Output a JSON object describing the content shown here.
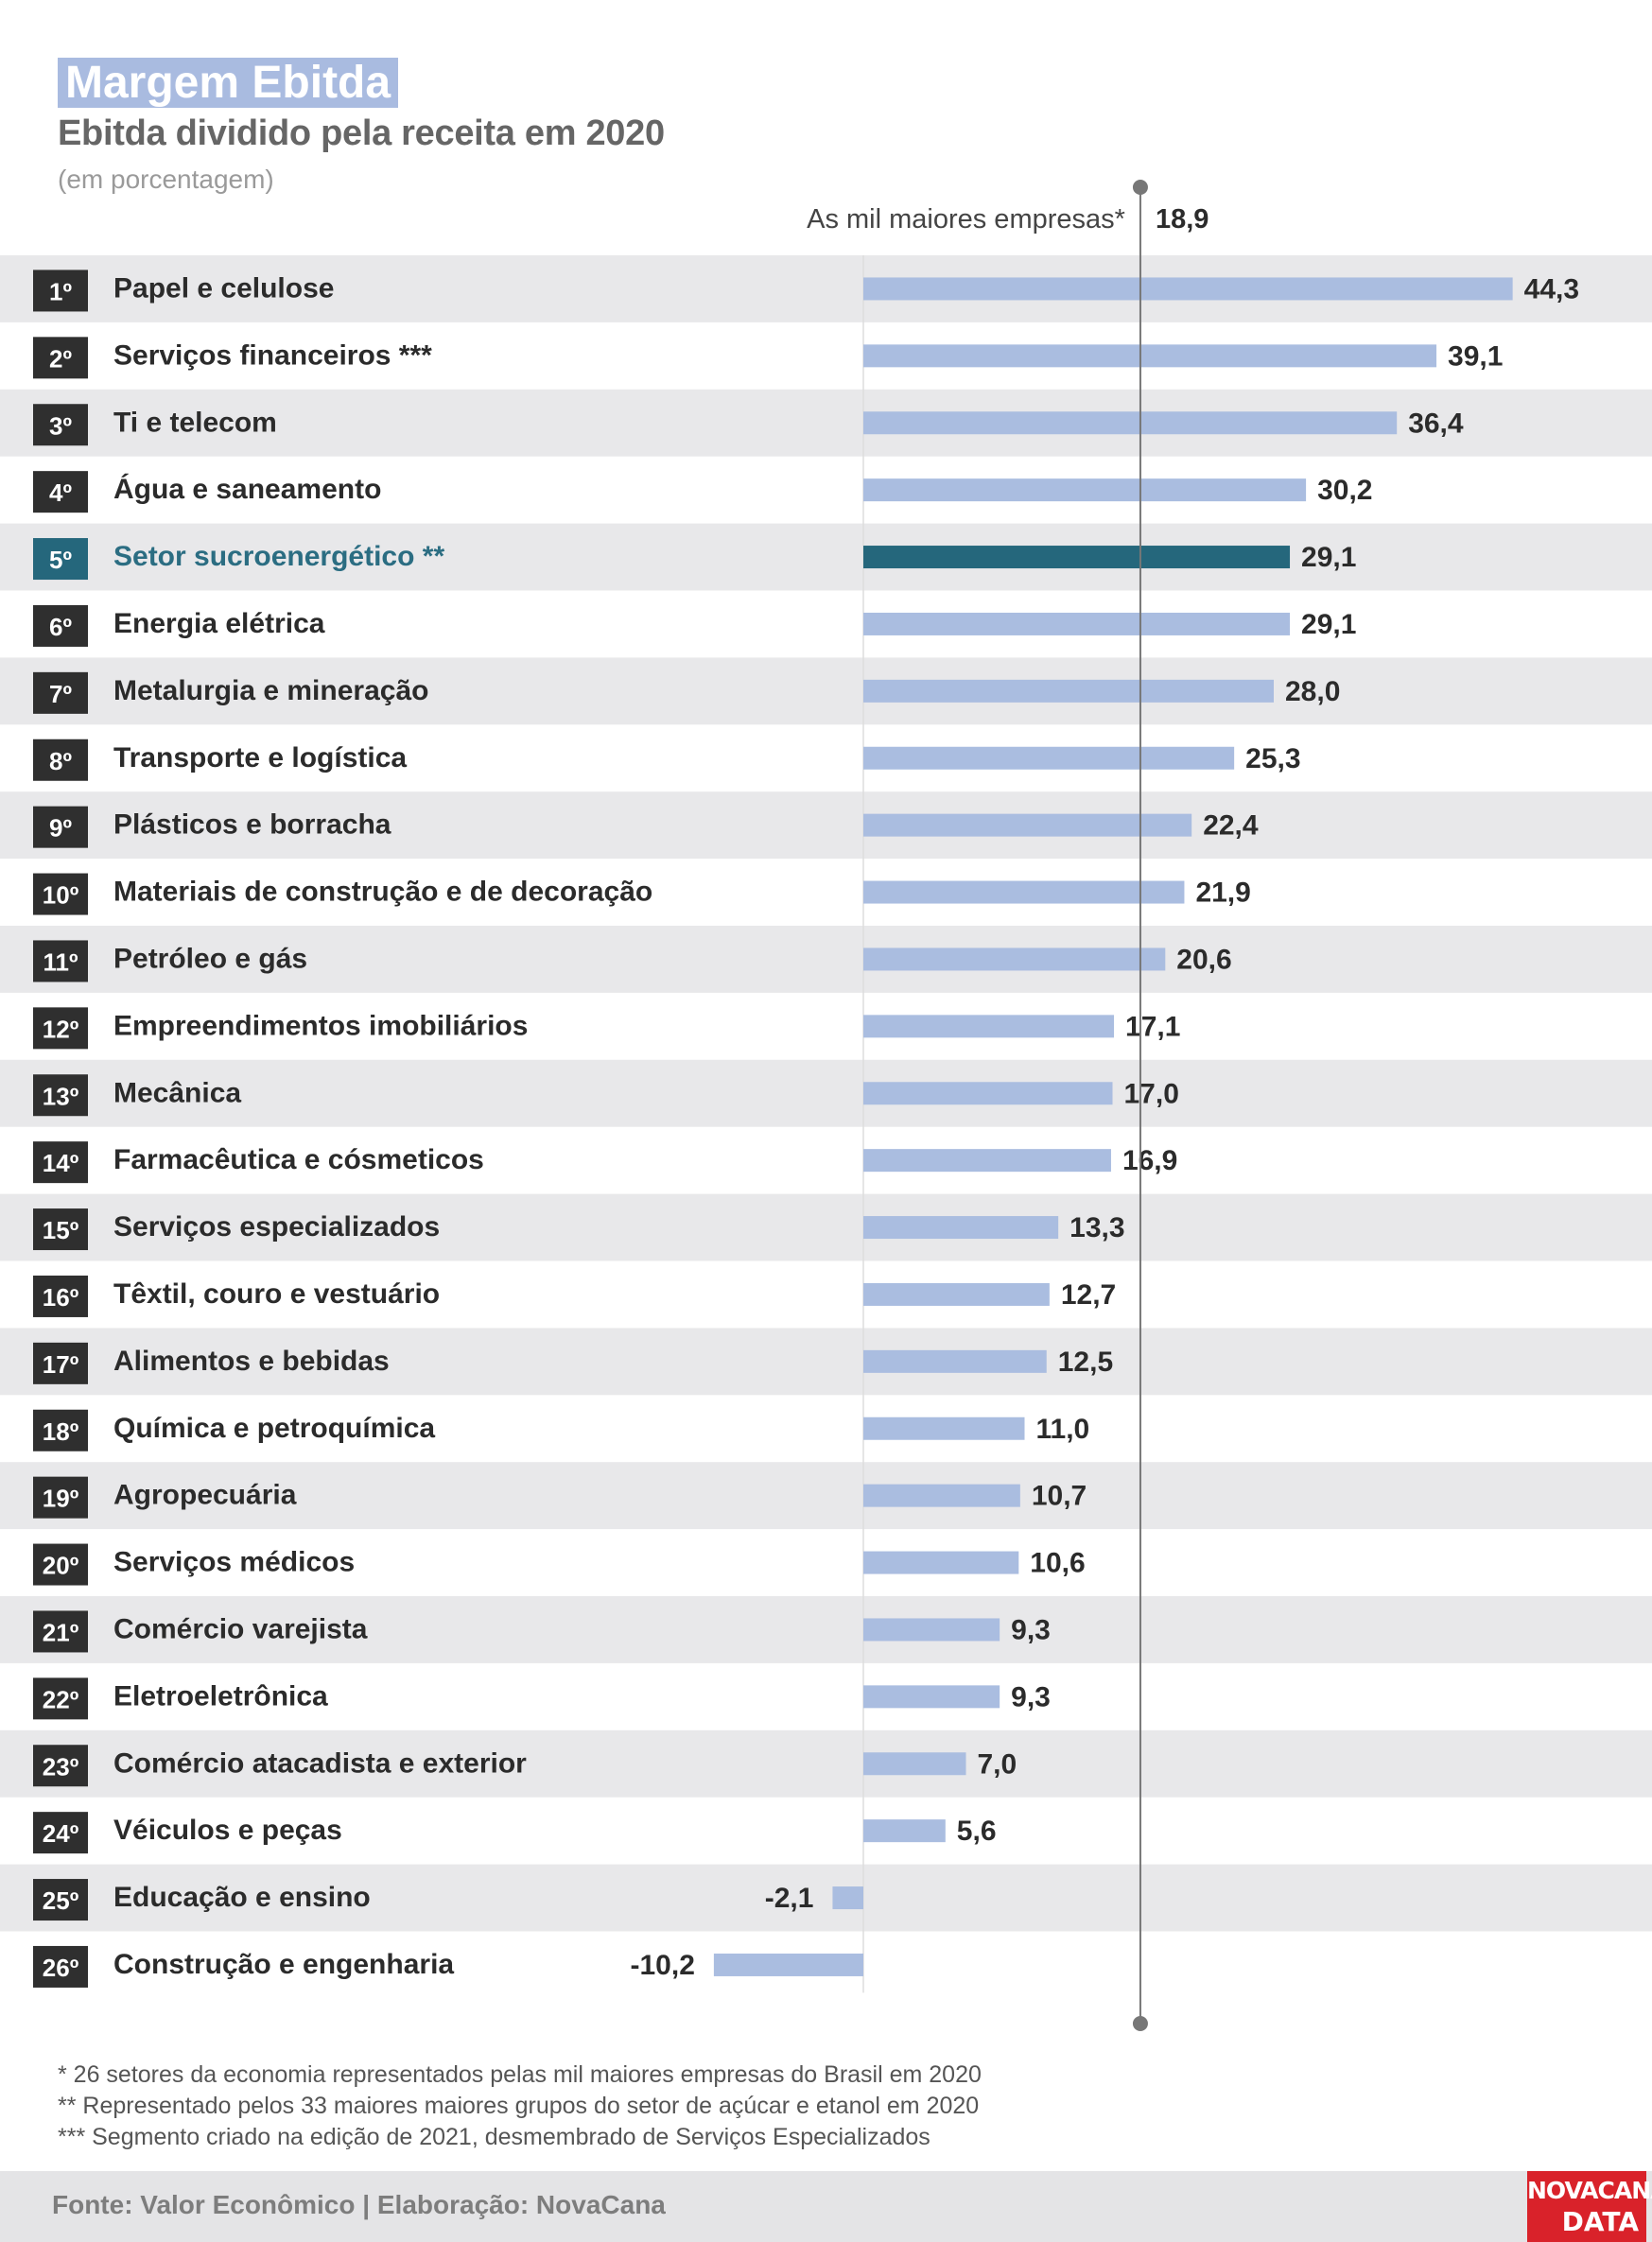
{
  "title": "Margem Ebitda",
  "subtitle": "Ebitda dividido pela receita em 2020",
  "unit_note": "(em porcentagem)",
  "chart_data": {
    "type": "bar",
    "orientation": "horizontal",
    "reference_line": {
      "label": "As mil maiores empresas*",
      "value": 18.9,
      "value_label": "18,9"
    },
    "categories": [
      "Papel e celulose",
      "Serviços financeiros ***",
      "Ti e telecom",
      "Água e saneamento",
      "Setor sucroenergético **",
      "Energia elétrica",
      "Metalurgia e mineração",
      "Transporte e logística",
      "Plásticos e borracha",
      "Materiais de construção e de decoração",
      "Petróleo e gás",
      "Empreendimentos imobiliários",
      "Mecânica",
      "Farmacêutica e cósmeticos",
      "Serviços especializados",
      "Têxtil, couro e vestuário",
      "Alimentos e bebidas",
      "Química e petroquímica",
      "Agropecuária",
      "Serviços médicos",
      "Comércio varejista",
      "Eletroeletrônica",
      "Comércio atacadista e exterior",
      "Véiculos e peças",
      "Educação e ensino",
      "Construção e engenharia"
    ],
    "ranks": [
      "1º",
      "2º",
      "3º",
      "4º",
      "5º",
      "6º",
      "7º",
      "8º",
      "9º",
      "10º",
      "11º",
      "12º",
      "13º",
      "14º",
      "15º",
      "16º",
      "17º",
      "18º",
      "19º",
      "20º",
      "21º",
      "22º",
      "23º",
      "24º",
      "25º",
      "26º"
    ],
    "values": [
      44.3,
      39.1,
      36.4,
      30.2,
      29.1,
      29.1,
      28.0,
      25.3,
      22.4,
      21.9,
      20.6,
      17.1,
      17.0,
      16.9,
      13.3,
      12.7,
      12.5,
      11.0,
      10.7,
      10.6,
      9.3,
      9.3,
      7.0,
      5.6,
      -2.1,
      -10.2
    ],
    "value_labels": [
      "44,3",
      "39,1",
      "36,4",
      "30,2",
      "29,1",
      "29,1",
      "28,0",
      "25,3",
      "22,4",
      "21,9",
      "20,6",
      "17,1",
      "17,0",
      "16,9",
      "13,3",
      "12,7",
      "12,5",
      "11,0",
      "10,7",
      "10,6",
      "9,3",
      "9,3",
      "7,0",
      "5,6",
      "-2,1",
      "-10,2"
    ],
    "highlight_index": 4,
    "colors": {
      "bar": "#aabde0",
      "highlight_bar": "#25677c",
      "highlight_text": "#2b6d82",
      "rank_box": "#2f2f2f",
      "row_stripe": "#e8e8ea",
      "reference_line": "#777777"
    }
  },
  "notes": [
    "* 26 setores da economia representados pelas mil maiores empresas do Brasil em 2020",
    "** Representado pelos 33 maiores maiores grupos do setor de açúcar e etanol em 2020",
    "*** Segmento criado na edição de 2021, desmembrado de Serviços Especializados"
  ],
  "footer": {
    "source": "Fonte: Valor Econômico | Elaboração: NovaCana",
    "logo_line1": "NOVACANA",
    "logo_line2": "DATA"
  }
}
